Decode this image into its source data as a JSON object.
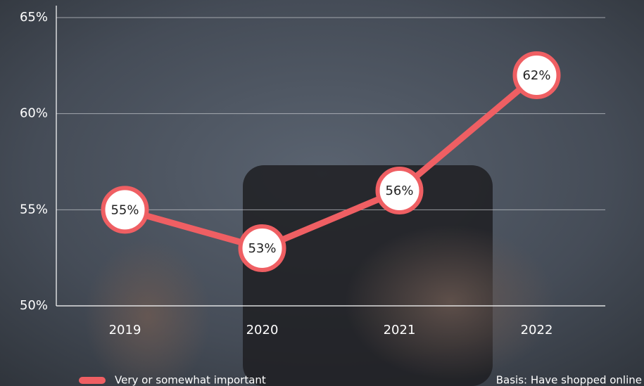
{
  "chart_data": {
    "type": "line",
    "categories": [
      "2019",
      "2020",
      "2021",
      "2022"
    ],
    "series": [
      {
        "name": "Very or somewhat important",
        "color": "#ef5f63",
        "values": [
          55,
          53,
          56,
          62
        ],
        "value_labels": [
          "55%",
          "53%",
          "56%",
          "62%"
        ]
      }
    ],
    "ylim": [
      50,
      65
    ],
    "yticks": [
      {
        "value": 50,
        "label": "50%"
      },
      {
        "value": 55,
        "label": "55%"
      },
      {
        "value": 60,
        "label": "60%"
      },
      {
        "value": 65,
        "label": "65%"
      }
    ],
    "grid": true,
    "note": "Basis: Have shopped online"
  }
}
